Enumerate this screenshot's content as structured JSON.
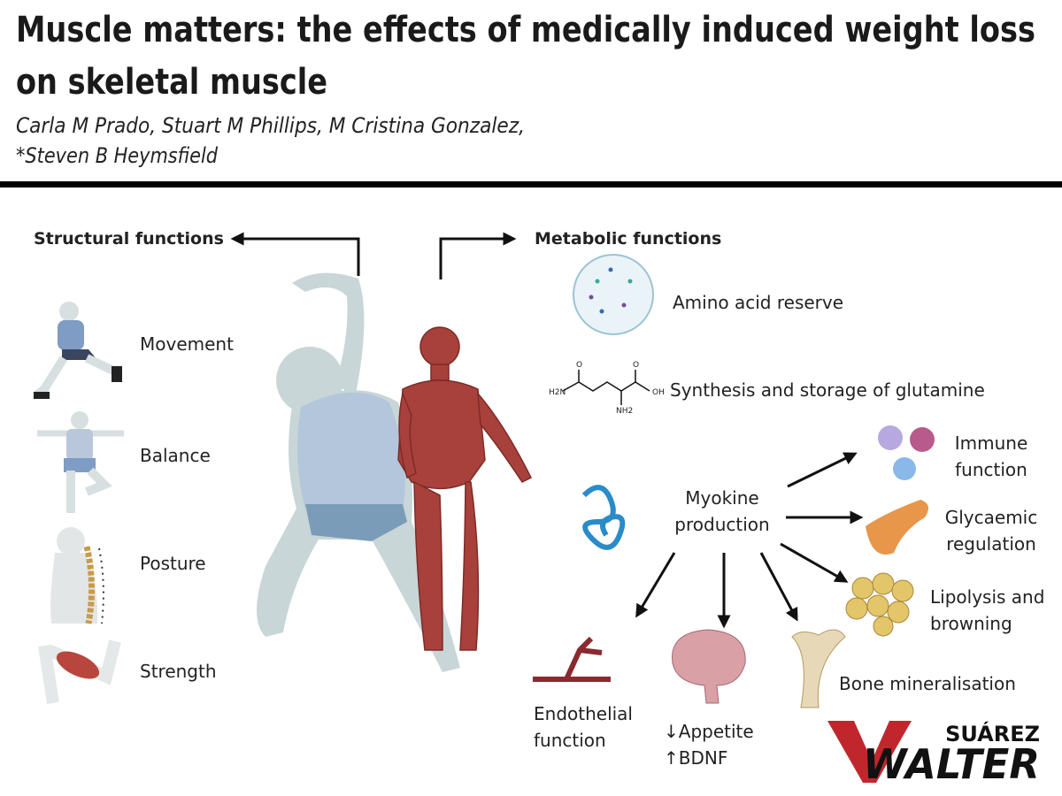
{
  "header": {
    "title": [
      "Muscle matters: the effects of medically induced weight loss",
      "on skeletal muscle"
    ],
    "authors": [
      "Carla M Prado, Stuart M Phillips, M Cristina Gonzalez,",
      "*Steven B Heymsfield"
    ]
  },
  "structural": {
    "heading": "Structural functions",
    "items": [
      "Movement",
      "Balance",
      "Posture",
      "Strength"
    ]
  },
  "metabolic": {
    "heading": "Metabolic functions",
    "amino": "Amino acid reserve",
    "glutamine": {
      "label": "Synthesis and storage of glutamine",
      "atoms": [
        "O",
        "O",
        "H2N",
        "OH",
        "NH2"
      ]
    },
    "myokine": {
      "label": [
        "Myokine",
        "production"
      ],
      "effects": {
        "immune": [
          "Immune",
          "function"
        ],
        "glycaemic": [
          "Glycaemic",
          "regulation"
        ],
        "lipolysis": [
          "Lipolysis and",
          "browning"
        ],
        "bone": [
          "Bone mineralisation"
        ],
        "endothelial": [
          "Endothelial",
          "function"
        ],
        "brain": [
          "↓Appetite",
          "↑BDNF"
        ]
      }
    }
  },
  "logo": {
    "top": "SUÁREZ",
    "bottom": "WALTER"
  }
}
